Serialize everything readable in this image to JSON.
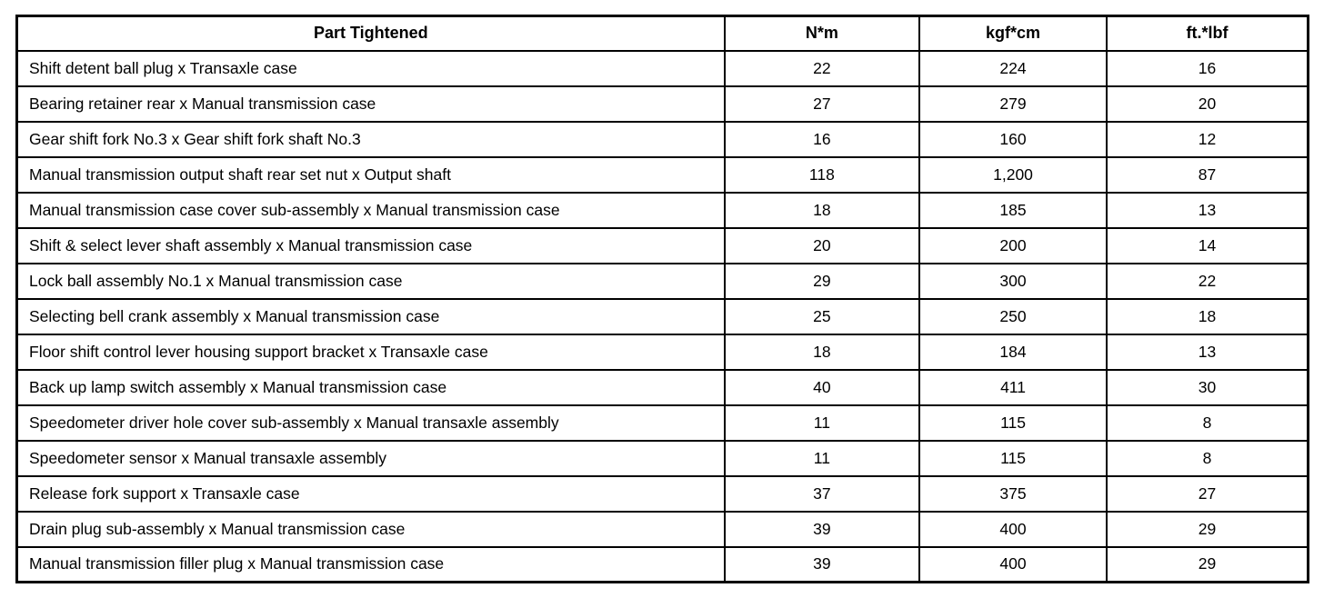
{
  "table": {
    "columns": [
      {
        "key": "part",
        "label": "Part Tightened"
      },
      {
        "key": "nm",
        "label": "N*m"
      },
      {
        "key": "kgf_cm",
        "label": "kgf*cm"
      },
      {
        "key": "ft_lbf",
        "label": "ft.*lbf"
      }
    ],
    "rows": [
      {
        "part": "Shift detent ball plug x Transaxle case",
        "nm": "22",
        "kgf_cm": "224",
        "ft_lbf": "16"
      },
      {
        "part": "Bearing retainer rear x Manual transmission case",
        "nm": "27",
        "kgf_cm": "279",
        "ft_lbf": "20"
      },
      {
        "part": "Gear shift fork No.3 x Gear shift fork shaft No.3",
        "nm": "16",
        "kgf_cm": "160",
        "ft_lbf": "12"
      },
      {
        "part": "Manual transmission output shaft rear set nut x Output shaft",
        "nm": "118",
        "kgf_cm": "1,200",
        "ft_lbf": "87"
      },
      {
        "part": "Manual transmission case cover sub-assembly x Manual transmission case",
        "nm": "18",
        "kgf_cm": "185",
        "ft_lbf": "13"
      },
      {
        "part": "Shift & select lever shaft assembly x Manual transmission case",
        "nm": "20",
        "kgf_cm": "200",
        "ft_lbf": "14"
      },
      {
        "part": "Lock ball assembly No.1 x Manual transmission case",
        "nm": "29",
        "kgf_cm": "300",
        "ft_lbf": "22"
      },
      {
        "part": "Selecting bell crank assembly x Manual transmission case",
        "nm": "25",
        "kgf_cm": "250",
        "ft_lbf": "18"
      },
      {
        "part": "Floor shift control lever housing support bracket x Transaxle case",
        "nm": "18",
        "kgf_cm": "184",
        "ft_lbf": "13"
      },
      {
        "part": "Back up lamp switch assembly x Manual transmission case",
        "nm": "40",
        "kgf_cm": "411",
        "ft_lbf": "30"
      },
      {
        "part": "Speedometer driver hole cover sub-assembly x Manual transaxle assembly",
        "nm": "11",
        "kgf_cm": "115",
        "ft_lbf": "8"
      },
      {
        "part": "Speedometer sensor x Manual transaxle assembly",
        "nm": "11",
        "kgf_cm": "115",
        "ft_lbf": "8"
      },
      {
        "part": "Release fork support x Transaxle case",
        "nm": "37",
        "kgf_cm": "375",
        "ft_lbf": "27"
      },
      {
        "part": "Drain plug sub-assembly x Manual transmission case",
        "nm": "39",
        "kgf_cm": "400",
        "ft_lbf": "29"
      },
      {
        "part": "Manual transmission filler plug x Manual transmission case",
        "nm": "39",
        "kgf_cm": "400",
        "ft_lbf": "29"
      }
    ]
  },
  "colors": {
    "border": "#000000",
    "background": "#ffffff",
    "text": "#000000"
  }
}
